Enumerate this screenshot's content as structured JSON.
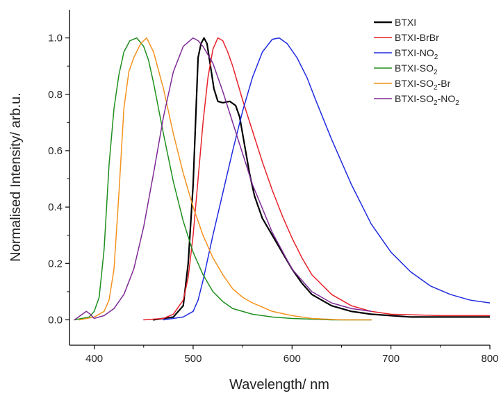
{
  "chart_data": {
    "type": "line",
    "xlabel": "Wavelength/ nm",
    "ylabel": "Normalised Intensity/ arb.u.",
    "xlim": [
      375,
      800
    ],
    "ylim": [
      -0.09,
      1.1
    ],
    "x_ticks": [
      400,
      500,
      600,
      700,
      800
    ],
    "y_ticks": [
      0.0,
      0.2,
      0.4,
      0.6,
      0.8,
      1.0
    ],
    "x_tick_labels": [
      "400",
      "500",
      "600",
      "700",
      "800"
    ],
    "y_tick_labels": [
      "0.0",
      "0.2",
      "0.4",
      "0.6",
      "0.8",
      "1.0"
    ],
    "legend_position": "top-right",
    "grid": false,
    "series": [
      {
        "name": "BTXI",
        "label_parts": [
          [
            "BTXI",
            false
          ]
        ],
        "color": "#000000",
        "stroke_width": 2.2,
        "x": [
          460,
          480,
          490,
          495,
          500,
          503,
          505,
          508,
          511,
          514,
          518,
          521,
          525,
          530,
          537,
          543,
          547,
          552,
          557,
          562,
          570,
          580,
          590,
          600,
          610,
          620,
          640,
          660,
          680,
          700,
          720,
          800
        ],
        "y": [
          0.0,
          0.01,
          0.05,
          0.2,
          0.48,
          0.75,
          0.93,
          0.98,
          1.0,
          0.98,
          0.89,
          0.82,
          0.775,
          0.77,
          0.775,
          0.76,
          0.72,
          0.62,
          0.52,
          0.44,
          0.36,
          0.3,
          0.24,
          0.18,
          0.13,
          0.09,
          0.05,
          0.03,
          0.02,
          0.015,
          0.01,
          0.01
        ]
      },
      {
        "name": "BTXI-BrBr",
        "label_parts": [
          [
            "BTXI-BrBr",
            false
          ]
        ],
        "color": "#e8212a",
        "stroke_width": 1.5,
        "x": [
          450,
          470,
          480,
          490,
          495,
          500,
          505,
          510,
          515,
          520,
          525,
          530,
          535,
          540,
          550,
          560,
          570,
          580,
          590,
          600,
          610,
          620,
          640,
          660,
          680,
          700,
          750,
          800
        ],
        "y": [
          0.0,
          0.005,
          0.02,
          0.07,
          0.15,
          0.3,
          0.5,
          0.7,
          0.86,
          0.96,
          1.0,
          0.99,
          0.95,
          0.9,
          0.78,
          0.67,
          0.56,
          0.46,
          0.37,
          0.29,
          0.22,
          0.16,
          0.09,
          0.05,
          0.03,
          0.02,
          0.015,
          0.015
        ]
      },
      {
        "name": "BTXI-NO2",
        "label_parts": [
          [
            "BTXI-NO",
            false
          ],
          [
            "2",
            true
          ]
        ],
        "color": "#1f2be0",
        "stroke_width": 1.5,
        "x": [
          470,
          490,
          500,
          505,
          510,
          520,
          530,
          540,
          550,
          560,
          570,
          580,
          587,
          595,
          605,
          615,
          625,
          640,
          660,
          680,
          700,
          720,
          740,
          760,
          780,
          800
        ],
        "y": [
          0.0,
          0.01,
          0.03,
          0.07,
          0.14,
          0.3,
          0.45,
          0.6,
          0.74,
          0.86,
          0.95,
          0.995,
          1.0,
          0.98,
          0.93,
          0.86,
          0.77,
          0.64,
          0.48,
          0.34,
          0.24,
          0.17,
          0.12,
          0.09,
          0.07,
          0.06
        ]
      },
      {
        "name": "BTXI-SO2",
        "label_parts": [
          [
            "BTXI-SO",
            false
          ],
          [
            "2",
            true
          ]
        ],
        "color": "#1e8f1e",
        "stroke_width": 1.5,
        "x": [
          380,
          395,
          400,
          405,
          410,
          415,
          420,
          425,
          430,
          436,
          443,
          450,
          455,
          460,
          470,
          480,
          490,
          500,
          510,
          520,
          530,
          540,
          560,
          580,
          600,
          640,
          680
        ],
        "y": [
          0.0,
          0.01,
          0.03,
          0.08,
          0.25,
          0.55,
          0.75,
          0.87,
          0.95,
          0.99,
          1.0,
          0.97,
          0.92,
          0.84,
          0.66,
          0.49,
          0.35,
          0.24,
          0.16,
          0.1,
          0.065,
          0.04,
          0.02,
          0.01,
          0.005,
          0.0,
          0.0
        ]
      },
      {
        "name": "BTXI-SO2-Br",
        "label_parts": [
          [
            "BTXI-SO",
            false
          ],
          [
            "2",
            true
          ],
          [
            "-Br",
            false
          ]
        ],
        "color": "#f5921e",
        "stroke_width": 1.5,
        "x": [
          385,
          400,
          410,
          415,
          420,
          425,
          430,
          435,
          440,
          447,
          453,
          460,
          470,
          480,
          490,
          500,
          510,
          520,
          530,
          540,
          550,
          560,
          580,
          600,
          620,
          650,
          680
        ],
        "y": [
          0.0,
          0.01,
          0.03,
          0.07,
          0.18,
          0.45,
          0.75,
          0.88,
          0.93,
          0.98,
          1.0,
          0.95,
          0.82,
          0.66,
          0.52,
          0.4,
          0.3,
          0.22,
          0.16,
          0.11,
          0.08,
          0.06,
          0.03,
          0.015,
          0.005,
          0.0,
          0.0
        ]
      },
      {
        "name": "BTXI-SO2-NO2",
        "label_parts": [
          [
            "BTXI-SO",
            false
          ],
          [
            "2",
            true
          ],
          [
            "-NO",
            false
          ],
          [
            "2",
            true
          ]
        ],
        "color": "#7e2a96",
        "stroke_width": 1.5,
        "x": [
          380,
          388,
          392,
          396,
          400,
          410,
          420,
          430,
          440,
          450,
          460,
          470,
          480,
          490,
          500,
          505,
          510,
          520,
          530,
          540,
          550,
          560,
          580,
          600,
          620,
          640,
          660,
          680
        ],
        "y": [
          0.0,
          0.02,
          0.03,
          0.02,
          0.005,
          0.015,
          0.04,
          0.09,
          0.18,
          0.33,
          0.52,
          0.72,
          0.88,
          0.97,
          1.0,
          0.99,
          0.97,
          0.91,
          0.81,
          0.7,
          0.59,
          0.48,
          0.31,
          0.18,
          0.1,
          0.06,
          0.04,
          0.03
        ]
      }
    ]
  }
}
